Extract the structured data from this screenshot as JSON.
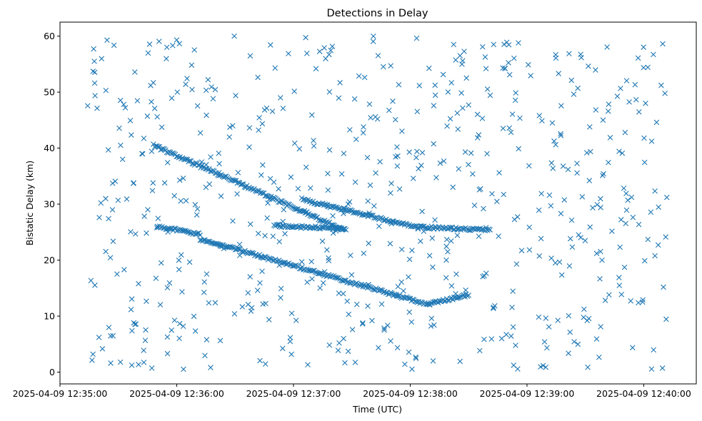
{
  "chart_data": {
    "type": "scatter",
    "title": "Detections in Delay",
    "xlabel": "Time (UTC)",
    "ylabel": "Bistatic Delay (km)",
    "x_unit": "UTC timestamp",
    "xlim": [
      "2025-04-09 12:35:00",
      "2025-04-09 12:40:27"
    ],
    "ylim": [
      -2.1,
      62.5
    ],
    "x_ticks": [
      "2025-04-09 12:35:00",
      "2025-04-09 12:36:00",
      "2025-04-09 12:37:00",
      "2025-04-09 12:38:00",
      "2025-04-09 12:39:00",
      "2025-04-09 12:40:00"
    ],
    "y_ticks": [
      0,
      10,
      20,
      30,
      40,
      50,
      60
    ],
    "marker": "x",
    "color": "#1f77b4",
    "grid": false,
    "legend": "none",
    "tracks": [
      {
        "start": "2025-04-09 12:35:48",
        "end": "2025-04-09 12:37:26",
        "delay_start": 40.5,
        "delay_end": 25.4
      },
      {
        "start": "2025-04-09 12:35:50",
        "end": "2025-04-09 12:36:12",
        "delay_start": 26.0,
        "delay_end": 24.6
      },
      {
        "start": "2025-04-09 12:36:12",
        "end": "2025-04-09 12:38:10",
        "delay_start": 23.8,
        "delay_end": 12.0
      },
      {
        "start": "2025-04-09 12:38:10",
        "end": "2025-04-09 12:38:30",
        "delay_start": 12.2,
        "delay_end": 13.8
      },
      {
        "start": "2025-04-09 12:36:50",
        "end": "2025-04-09 12:37:27",
        "delay_start": 26.2,
        "delay_end": 25.6
      },
      {
        "start": "2025-04-09 12:37:05",
        "end": "2025-04-09 12:38:04",
        "delay_start": 30.8,
        "delay_end": 25.8
      },
      {
        "start": "2025-04-09 12:38:04",
        "end": "2025-04-09 12:38:41",
        "delay_start": 25.9,
        "delay_end": 25.4
      }
    ],
    "clutter": {
      "count": 640,
      "x_range": [
        "2025-04-09 12:35:14",
        "2025-04-09 12:40:12"
      ],
      "y_range": [
        0.5,
        60
      ]
    }
  }
}
